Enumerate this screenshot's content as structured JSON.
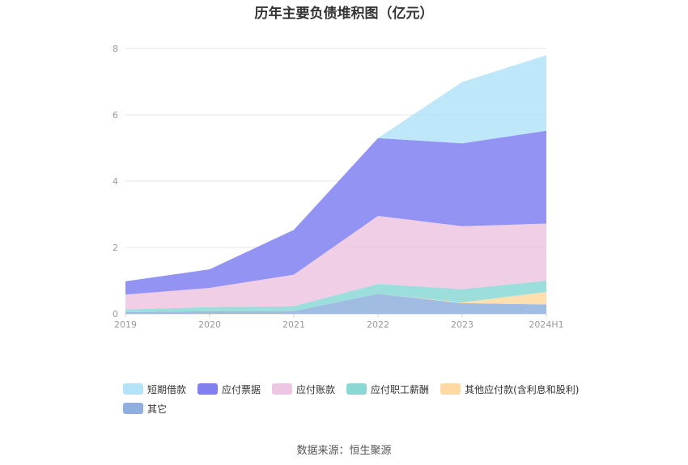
{
  "title": "历年主要负债堆积图（亿元）",
  "source": "数据来源：恒生聚源",
  "chart_data": {
    "type": "area",
    "stacked": true,
    "categories": [
      "2019",
      "2020",
      "2021",
      "2022",
      "2023",
      "2024H1"
    ],
    "ylim": [
      0,
      8
    ],
    "yticks": [
      0,
      2,
      4,
      6,
      8
    ],
    "grid": true,
    "legend_position": "bottom",
    "series": [
      {
        "name": "其它",
        "color": "#8fb0de",
        "values": [
          0.05,
          0.08,
          0.08,
          0.6,
          0.32,
          0.28
        ]
      },
      {
        "name": "其他应付款(含利息和股利)",
        "color": "#ffd9a0",
        "values": [
          0.0,
          0.0,
          0.0,
          0.0,
          0.02,
          0.38
        ]
      },
      {
        "name": "应付职工薪酬",
        "color": "#8ad8d6",
        "values": [
          0.08,
          0.12,
          0.15,
          0.3,
          0.4,
          0.34
        ]
      },
      {
        "name": "应付账款",
        "color": "#ecc6e2",
        "values": [
          0.45,
          0.58,
          0.95,
          2.05,
          1.9,
          1.72
        ]
      },
      {
        "name": "应付票据",
        "color": "#8080f2",
        "values": [
          0.4,
          0.56,
          1.35,
          2.35,
          2.5,
          2.8
        ]
      },
      {
        "name": "短期借款",
        "color": "#b3e3f8",
        "values": [
          0.0,
          0.0,
          0.0,
          0.0,
          1.85,
          2.28
        ]
      }
    ],
    "legend_order": [
      "短期借款",
      "应付票据",
      "应付账款",
      "应付职工薪酬",
      "其他应付款(含利息和股利)",
      "其它"
    ]
  }
}
